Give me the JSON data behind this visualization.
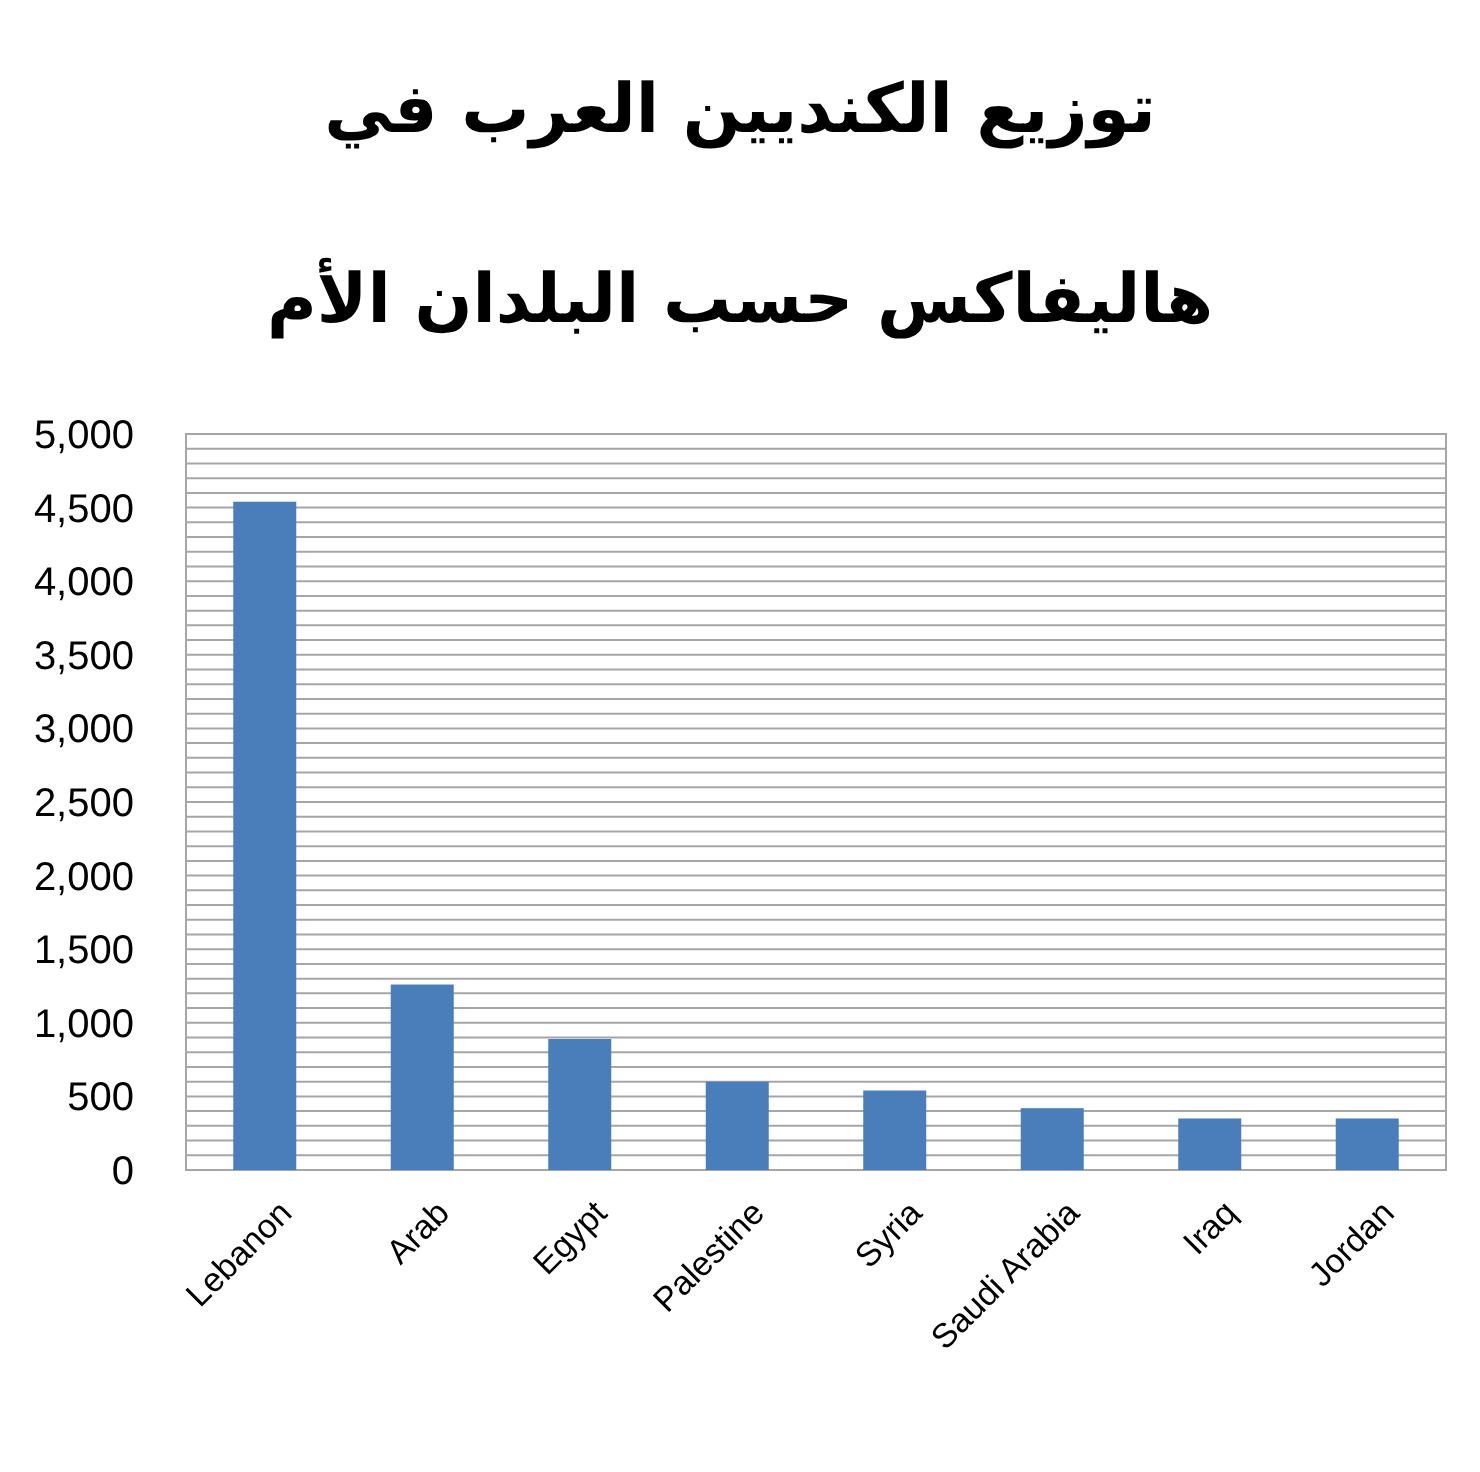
{
  "chart_data": {
    "type": "bar",
    "title": "توزيع الكنديين العرب في هاليفاكس حسب البلدان الأم",
    "categories": [
      "Lebanon",
      "Arab",
      "Egypt",
      "Palestine",
      "Syria",
      "Saudi Arabia",
      "Iraq",
      "Jordan"
    ],
    "values": [
      4540,
      1260,
      890,
      600,
      540,
      420,
      350,
      350
    ],
    "color": "#4a7ebb",
    "ylim": [
      0,
      5000
    ],
    "yticks": [
      {
        "value": 0,
        "label": "0"
      },
      {
        "value": 500,
        "label": "500"
      },
      {
        "value": 1000,
        "label": "1,000"
      },
      {
        "value": 1500,
        "label": "1,500"
      },
      {
        "value": 2000,
        "label": "2,000"
      },
      {
        "value": 2500,
        "label": "2,500"
      },
      {
        "value": 3000,
        "label": "3,000"
      },
      {
        "value": 3500,
        "label": "3,500"
      },
      {
        "value": 4000,
        "label": "4,000"
      },
      {
        "value": 4500,
        "label": "4,500"
      },
      {
        "value": 5000,
        "label": "5,000"
      }
    ],
    "grid": "y"
  }
}
